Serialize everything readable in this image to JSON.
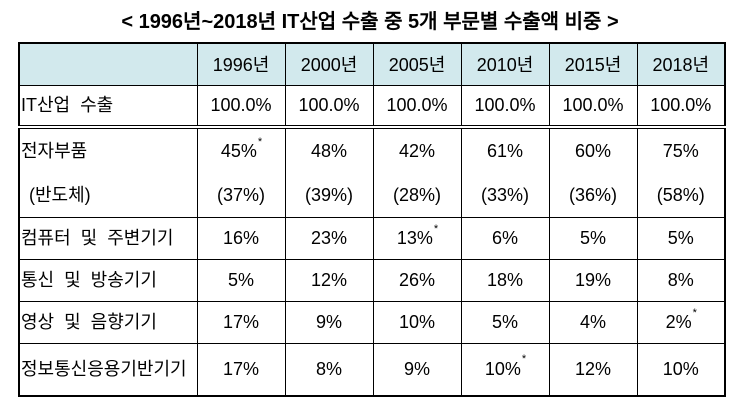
{
  "title": "< 1996년~2018년 IT산업 수출 중 5개 부문별 수출액 비중 >",
  "colors": {
    "header_bg": "#d2e9ed",
    "border": "#000000",
    "text": "#000000",
    "page_bg": "#ffffff"
  },
  "table": {
    "corner_label": "",
    "columns": [
      "1996년",
      "2000년",
      "2005년",
      "2010년",
      "2015년",
      "2018년"
    ],
    "rows": [
      {
        "label": "IT산업 수출",
        "values": [
          "100.0%",
          "100.0%",
          "100.0%",
          "100.0%",
          "100.0%",
          "100.0%"
        ],
        "separator": "double"
      },
      {
        "label": "전자부품",
        "sublabel": "(반도체)",
        "values": [
          "45%*",
          "48%",
          "42%",
          "61%",
          "60%",
          "75%"
        ],
        "subvalues": [
          "(37%)",
          "(39%)",
          "(28%)",
          "(33%)",
          "(36%)",
          "(58%)"
        ]
      },
      {
        "label": "컴퓨터 및 주변기기",
        "values": [
          "16%",
          "23%",
          "13%*",
          "6%",
          "5%",
          "5%"
        ]
      },
      {
        "label": "통신 및 방송기기",
        "values": [
          "5%",
          "12%",
          "26%",
          "18%",
          "19%",
          "8%"
        ]
      },
      {
        "label": "영상 및 음향기기",
        "values": [
          "17%",
          "9%",
          "10%",
          "5%",
          "4%",
          "2%*"
        ]
      },
      {
        "label": "정보통신응용기반기기",
        "values": [
          "17%",
          "8%",
          "9%",
          "10%*",
          "12%",
          "10%"
        ]
      }
    ],
    "footnote_marker": "*"
  }
}
